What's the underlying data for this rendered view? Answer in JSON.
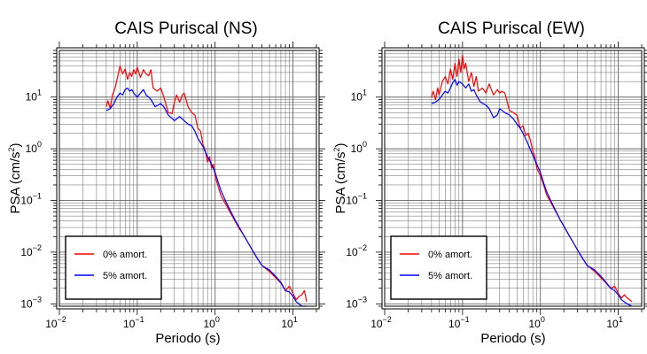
{
  "chart_data": [
    {
      "type": "line",
      "title": "CAIS Puriscal (NS)",
      "xlabel": "Periodo (s)",
      "ylabel_base": "PSA (cm/s",
      "ylabel_exp": "2",
      "ylabel_close": ")",
      "xscale": "log",
      "yscale": "log",
      "xlim": [
        0.01,
        20
      ],
      "ylim": [
        0.0009,
        80
      ],
      "grid": true,
      "legend_position": "bottom-left",
      "x_ticks": [
        {
          "base": "10",
          "exp": "−2",
          "value": 0.01
        },
        {
          "base": "10",
          "exp": "−1",
          "value": 0.1
        },
        {
          "base": "10",
          "exp": "0",
          "value": 1
        },
        {
          "base": "10",
          "exp": "1",
          "value": 10
        }
      ],
      "y_ticks": [
        {
          "base": "10",
          "exp": "−3",
          "value": 0.001
        },
        {
          "base": "10",
          "exp": "−2",
          "value": 0.01
        },
        {
          "base": "10",
          "exp": "−1",
          "value": 0.1
        },
        {
          "base": "10",
          "exp": "0",
          "value": 1
        },
        {
          "base": "10",
          "exp": "1",
          "value": 10
        }
      ],
      "series": [
        {
          "name": "0% amort.",
          "color": "#ff0000",
          "points": [
            [
              0.04,
              6.5
            ],
            [
              0.042,
              8.5
            ],
            [
              0.045,
              6
            ],
            [
              0.048,
              11
            ],
            [
              0.052,
              15
            ],
            [
              0.056,
              25
            ],
            [
              0.06,
              40
            ],
            [
              0.065,
              28
            ],
            [
              0.07,
              35
            ],
            [
              0.075,
              22
            ],
            [
              0.08,
              30
            ],
            [
              0.085,
              25
            ],
            [
              0.09,
              34
            ],
            [
              0.095,
              28
            ],
            [
              0.1,
              38
            ],
            [
              0.11,
              24
            ],
            [
              0.12,
              34
            ],
            [
              0.13,
              28
            ],
            [
              0.14,
              26
            ],
            [
              0.15,
              34
            ],
            [
              0.16,
              15
            ],
            [
              0.18,
              13
            ],
            [
              0.2,
              15
            ],
            [
              0.22,
              10
            ],
            [
              0.25,
              5
            ],
            [
              0.28,
              4.8
            ],
            [
              0.3,
              8
            ],
            [
              0.32,
              11
            ],
            [
              0.35,
              8
            ],
            [
              0.38,
              11
            ],
            [
              0.4,
              12
            ],
            [
              0.45,
              6.5
            ],
            [
              0.5,
              5
            ],
            [
              0.55,
              4.5
            ],
            [
              0.6,
              2.5
            ],
            [
              0.65,
              2.2
            ],
            [
              0.7,
              1.2
            ],
            [
              0.75,
              0.9
            ],
            [
              0.8,
              0.55
            ],
            [
              0.85,
              0.7
            ],
            [
              0.9,
              0.42
            ],
            [
              0.95,
              0.5
            ],
            [
              1.0,
              0.3
            ],
            [
              1.1,
              0.18
            ],
            [
              1.2,
              0.12
            ],
            [
              1.4,
              0.08
            ],
            [
              1.6,
              0.055
            ],
            [
              1.8,
              0.04
            ],
            [
              2.0,
              0.03
            ],
            [
              2.3,
              0.022
            ],
            [
              2.6,
              0.016
            ],
            [
              3.0,
              0.011
            ],
            [
              3.5,
              0.0075
            ],
            [
              4.0,
              0.0055
            ],
            [
              5.0,
              0.0042
            ],
            [
              6.0,
              0.0032
            ],
            [
              7.0,
              0.0025
            ],
            [
              8.0,
              0.0018
            ],
            [
              9.0,
              0.0022
            ],
            [
              10.0,
              0.0016
            ],
            [
              11.0,
              0.0012
            ],
            [
              12.0,
              0.0014
            ],
            [
              13.0,
              0.0015
            ],
            [
              14.0,
              0.0018
            ],
            [
              15.0,
              0.0011
            ]
          ]
        },
        {
          "name": "5% amort.",
          "color": "#0000ff",
          "points": [
            [
              0.04,
              5.5
            ],
            [
              0.045,
              6
            ],
            [
              0.05,
              7.5
            ],
            [
              0.055,
              10
            ],
            [
              0.06,
              12
            ],
            [
              0.065,
              11
            ],
            [
              0.07,
              14
            ],
            [
              0.075,
              15
            ],
            [
              0.08,
              13
            ],
            [
              0.085,
              14
            ],
            [
              0.09,
              12
            ],
            [
              0.1,
              10
            ],
            [
              0.11,
              12
            ],
            [
              0.12,
              14
            ],
            [
              0.13,
              11
            ],
            [
              0.14,
              10
            ],
            [
              0.15,
              9
            ],
            [
              0.17,
              6.5
            ],
            [
              0.2,
              7.5
            ],
            [
              0.22,
              6.5
            ],
            [
              0.25,
              4.5
            ],
            [
              0.3,
              3.5
            ],
            [
              0.35,
              4.2
            ],
            [
              0.4,
              3.5
            ],
            [
              0.45,
              3
            ],
            [
              0.5,
              2.8
            ],
            [
              0.55,
              2.2
            ],
            [
              0.6,
              1.6
            ],
            [
              0.7,
              1.1
            ],
            [
              0.8,
              0.7
            ],
            [
              0.9,
              0.5
            ],
            [
              1.0,
              0.35
            ],
            [
              1.1,
              0.22
            ],
            [
              1.2,
              0.15
            ],
            [
              1.4,
              0.09
            ],
            [
              1.6,
              0.06
            ],
            [
              1.8,
              0.042
            ],
            [
              2.0,
              0.032
            ],
            [
              2.3,
              0.022
            ],
            [
              2.6,
              0.016
            ],
            [
              3.0,
              0.011
            ],
            [
              3.5,
              0.0075
            ],
            [
              4.0,
              0.0055
            ],
            [
              5.0,
              0.0045
            ],
            [
              6.0,
              0.0034
            ],
            [
              7.0,
              0.0026
            ],
            [
              8.0,
              0.0018
            ],
            [
              9.0,
              0.0017
            ],
            [
              10.0,
              0.0014
            ],
            [
              11.0,
              0.0011
            ],
            [
              13.0,
              0.0009
            ],
            [
              15.0,
              0.0009
            ]
          ]
        }
      ]
    },
    {
      "type": "line",
      "title": "CAIS Puriscal (EW)",
      "xlabel": "Periodo (s)",
      "ylabel_base": "PSA (cm/s",
      "ylabel_exp": "2",
      "ylabel_close": ")",
      "xscale": "log",
      "yscale": "log",
      "xlim": [
        0.01,
        20
      ],
      "ylim": [
        0.0009,
        80
      ],
      "grid": true,
      "legend_position": "bottom-left",
      "x_ticks": [
        {
          "base": "10",
          "exp": "−2",
          "value": 0.01
        },
        {
          "base": "10",
          "exp": "−1",
          "value": 0.1
        },
        {
          "base": "10",
          "exp": "0",
          "value": 1
        },
        {
          "base": "10",
          "exp": "1",
          "value": 10
        }
      ],
      "y_ticks": [
        {
          "base": "10",
          "exp": "−3",
          "value": 0.001
        },
        {
          "base": "10",
          "exp": "−2",
          "value": 0.01
        },
        {
          "base": "10",
          "exp": "−1",
          "value": 0.1
        },
        {
          "base": "10",
          "exp": "0",
          "value": 1
        },
        {
          "base": "10",
          "exp": "1",
          "value": 10
        }
      ],
      "series": [
        {
          "name": "0% amort.",
          "color": "#ff0000",
          "points": [
            [
              0.04,
              10
            ],
            [
              0.042,
              13
            ],
            [
              0.045,
              9
            ],
            [
              0.048,
              15
            ],
            [
              0.05,
              11
            ],
            [
              0.055,
              20
            ],
            [
              0.06,
              25
            ],
            [
              0.065,
              18
            ],
            [
              0.07,
              35
            ],
            [
              0.075,
              22
            ],
            [
              0.08,
              45
            ],
            [
              0.085,
              25
            ],
            [
              0.09,
              55
            ],
            [
              0.095,
              30
            ],
            [
              0.1,
              65
            ],
            [
              0.105,
              35
            ],
            [
              0.11,
              45
            ],
            [
              0.12,
              20
            ],
            [
              0.13,
              30
            ],
            [
              0.14,
              16
            ],
            [
              0.15,
              25
            ],
            [
              0.16,
              13
            ],
            [
              0.18,
              15
            ],
            [
              0.2,
              12
            ],
            [
              0.22,
              18
            ],
            [
              0.25,
              11
            ],
            [
              0.28,
              14
            ],
            [
              0.3,
              12
            ],
            [
              0.32,
              13
            ],
            [
              0.35,
              12
            ],
            [
              0.4,
              5.5
            ],
            [
              0.45,
              5
            ],
            [
              0.5,
              4.5
            ],
            [
              0.55,
              2.5
            ],
            [
              0.6,
              2.8
            ],
            [
              0.65,
              1.8
            ],
            [
              0.7,
              2.0
            ],
            [
              0.75,
              1.4
            ],
            [
              0.8,
              0.9
            ],
            [
              0.85,
              0.7
            ],
            [
              0.9,
              0.42
            ],
            [
              1.0,
              0.3
            ],
            [
              1.1,
              0.2
            ],
            [
              1.2,
              0.13
            ],
            [
              1.4,
              0.085
            ],
            [
              1.6,
              0.058
            ],
            [
              1.8,
              0.042
            ],
            [
              2.0,
              0.032
            ],
            [
              2.3,
              0.022
            ],
            [
              2.6,
              0.016
            ],
            [
              3.0,
              0.011
            ],
            [
              3.5,
              0.0075
            ],
            [
              4.0,
              0.0055
            ],
            [
              5.0,
              0.0042
            ],
            [
              6.0,
              0.0032
            ],
            [
              7.0,
              0.0025
            ],
            [
              8.0,
              0.002
            ],
            [
              9.0,
              0.0022
            ],
            [
              10.0,
              0.0016
            ],
            [
              11.0,
              0.0013
            ],
            [
              12.0,
              0.0015
            ],
            [
              13.0,
              0.0013
            ],
            [
              14.0,
              0.0012
            ],
            [
              15.0,
              0.0011
            ]
          ]
        },
        {
          "name": "5% amort.",
          "color": "#0000ff",
          "points": [
            [
              0.04,
              7.5
            ],
            [
              0.045,
              8
            ],
            [
              0.05,
              9
            ],
            [
              0.055,
              11
            ],
            [
              0.06,
              13
            ],
            [
              0.065,
              12
            ],
            [
              0.07,
              15
            ],
            [
              0.075,
              19
            ],
            [
              0.08,
              22
            ],
            [
              0.085,
              17
            ],
            [
              0.09,
              20
            ],
            [
              0.1,
              18
            ],
            [
              0.11,
              15
            ],
            [
              0.12,
              18
            ],
            [
              0.13,
              13
            ],
            [
              0.14,
              14
            ],
            [
              0.15,
              11
            ],
            [
              0.17,
              8
            ],
            [
              0.2,
              7
            ],
            [
              0.22,
              6
            ],
            [
              0.25,
              4
            ],
            [
              0.28,
              4.5
            ],
            [
              0.3,
              6
            ],
            [
              0.35,
              5
            ],
            [
              0.4,
              4.5
            ],
            [
              0.45,
              3.8
            ],
            [
              0.5,
              3
            ],
            [
              0.55,
              2.5
            ],
            [
              0.6,
              2
            ],
            [
              0.7,
              1.2
            ],
            [
              0.8,
              0.75
            ],
            [
              0.9,
              0.5
            ],
            [
              1.0,
              0.35
            ],
            [
              1.1,
              0.22
            ],
            [
              1.2,
              0.15
            ],
            [
              1.4,
              0.09
            ],
            [
              1.6,
              0.06
            ],
            [
              1.8,
              0.042
            ],
            [
              2.0,
              0.032
            ],
            [
              2.3,
              0.022
            ],
            [
              2.6,
              0.016
            ],
            [
              3.0,
              0.011
            ],
            [
              3.5,
              0.0075
            ],
            [
              4.0,
              0.0055
            ],
            [
              5.0,
              0.0045
            ],
            [
              6.0,
              0.0034
            ],
            [
              7.0,
              0.0026
            ],
            [
              8.0,
              0.002
            ],
            [
              9.0,
              0.0018
            ],
            [
              10.0,
              0.0015
            ],
            [
              11.0,
              0.0012
            ],
            [
              13.0,
              0.001
            ],
            [
              15.0,
              0.0009
            ]
          ]
        }
      ]
    }
  ]
}
